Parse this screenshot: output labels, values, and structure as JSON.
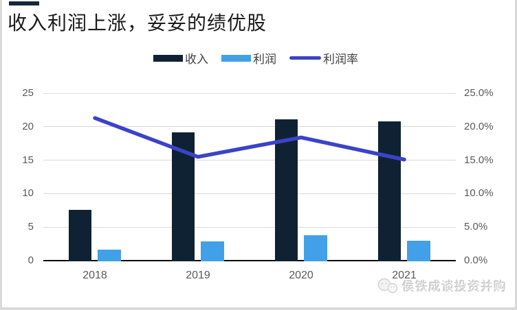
{
  "page": {
    "background": "#d9d9d9",
    "slide_background": "#ffffff",
    "accent_bar_color": "#14283c"
  },
  "title": "收入利润上涨，妥妥的绩优股",
  "watermark": {
    "icon": "wechat-chat-bubbles-icon",
    "text": "侯铁成谈投资并购"
  },
  "chart_data": {
    "type": "bar",
    "subtype": "grouped-bar-with-line-combo",
    "categories": [
      "2018",
      "2019",
      "2020",
      "2021"
    ],
    "series": [
      {
        "name": "收入",
        "kind": "bar",
        "axis": "left",
        "color": "#0e2233",
        "values": [
          7.7,
          19.3,
          21.2,
          20.9
        ]
      },
      {
        "name": "利润",
        "kind": "bar",
        "axis": "left",
        "color": "#41a0e8",
        "values": [
          1.7,
          3.0,
          3.9,
          3.1
        ]
      },
      {
        "name": "利润率",
        "kind": "line",
        "axis": "right",
        "unit": "%",
        "color": "#3b43c8",
        "values": [
          21.3,
          15.5,
          18.4,
          15.1
        ]
      }
    ],
    "left_axis": {
      "min": 0,
      "max": 25,
      "ticks": [
        "0",
        "5",
        "10",
        "15",
        "20",
        "25"
      ]
    },
    "right_axis": {
      "min": 0,
      "max": 25,
      "ticks": [
        "0.0%",
        "5.0%",
        "10.0%",
        "15.0%",
        "20.0%",
        "25.0%"
      ]
    },
    "grid": true,
    "grid_color": "#d9d9d9",
    "axis_line_color": "#000000",
    "tick_label_color": "#595959",
    "legend_position": "top"
  }
}
